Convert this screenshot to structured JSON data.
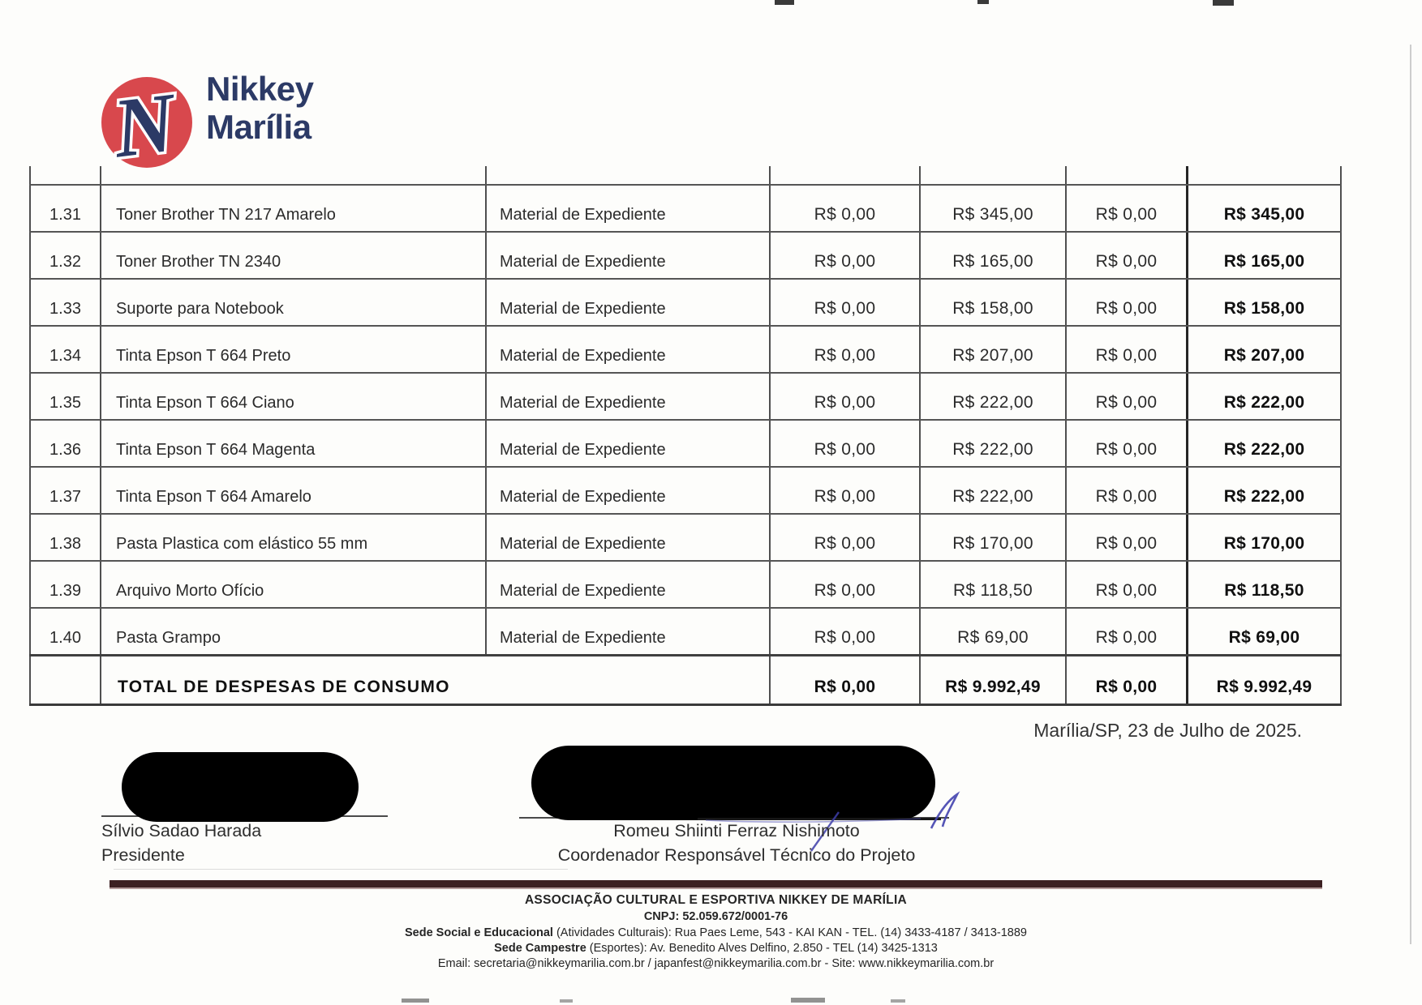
{
  "logo": {
    "line1": "Nikkey",
    "line2": "Marília"
  },
  "table": {
    "rows": [
      {
        "num": "1.31",
        "desc": "Toner Brother TN 217 Amarelo",
        "category": "Material de Expediente",
        "v1": "R$ 0,00",
        "v2": "R$ 345,00",
        "v3": "R$ 0,00",
        "total": "R$ 345,00"
      },
      {
        "num": "1.32",
        "desc": "Toner Brother TN 2340",
        "category": "Material de Expediente",
        "v1": "R$ 0,00",
        "v2": "R$ 165,00",
        "v3": "R$ 0,00",
        "total": "R$ 165,00"
      },
      {
        "num": "1.33",
        "desc": "Suporte para Notebook",
        "category": "Material de Expediente",
        "v1": "R$ 0,00",
        "v2": "R$ 158,00",
        "v3": "R$ 0,00",
        "total": "R$ 158,00"
      },
      {
        "num": "1.34",
        "desc": "Tinta Epson T 664 Preto",
        "category": "Material de Expediente",
        "v1": "R$ 0,00",
        "v2": "R$ 207,00",
        "v3": "R$ 0,00",
        "total": "R$ 207,00"
      },
      {
        "num": "1.35",
        "desc": "Tinta Epson T 664 Ciano",
        "category": "Material de Expediente",
        "v1": "R$ 0,00",
        "v2": "R$ 222,00",
        "v3": "R$ 0,00",
        "total": "R$ 222,00"
      },
      {
        "num": "1.36",
        "desc": "Tinta Epson T 664 Magenta",
        "category": "Material de Expediente",
        "v1": "R$ 0,00",
        "v2": "R$ 222,00",
        "v3": "R$ 0,00",
        "total": "R$ 222,00"
      },
      {
        "num": "1.37",
        "desc": "Tinta Epson T 664 Amarelo",
        "category": "Material de Expediente",
        "v1": "R$ 0,00",
        "v2": "R$ 222,00",
        "v3": "R$ 0,00",
        "total": "R$ 222,00"
      },
      {
        "num": "1.38",
        "desc": "Pasta Plastica com elástico 55 mm",
        "category": "Material de Expediente",
        "v1": "R$ 0,00",
        "v2": "R$ 170,00",
        "v3": "R$ 0,00",
        "total": "R$ 170,00"
      },
      {
        "num": "1.39",
        "desc": "Arquivo Morto Ofício",
        "category": "Material de Expediente",
        "v1": "R$ 0,00",
        "v2": "R$ 118,50",
        "v3": "R$ 0,00",
        "total": "R$ 118,50"
      },
      {
        "num": "1.40",
        "desc": "Pasta Grampo",
        "category": "Material de Expediente",
        "v1": "R$ 0,00",
        "v2": "R$ 69,00",
        "v3": "R$ 0,00",
        "total": "R$ 69,00"
      }
    ],
    "total_row": {
      "label": "TOTAL DE DESPESAS DE CONSUMO",
      "v1": "R$ 0,00",
      "v2": "R$ 9.992,49",
      "v3": "R$ 0,00",
      "total": "R$ 9.992,49"
    }
  },
  "date_line": "Marília/SP, 23 de Julho de 2025.",
  "signatures": {
    "left": {
      "name": "Sílvio Sadao Harada",
      "role": "Presidente"
    },
    "right": {
      "name": "Romeu Shiinti Ferraz Nishimoto",
      "role": "Coordenador Responsável Técnico do Projeto"
    }
  },
  "footer": {
    "org": "ASSOCIAÇÃO CULTURAL E ESPORTIVA NIKKEY DE MARÍLIA",
    "cnpj": "CNPJ: 52.059.672/0001-76",
    "line3_bold": "Sede Social e Educacional",
    "line3_rest": " (Atividades Culturais): Rua Paes Leme, 543 - KAI KAN - TEL. (14) 3433-4187 / 3413-1889",
    "line4_bold": "Sede Campestre",
    "line4_rest": " (Esportes): Av. Benedito Alves Delfino, 2.850 - TEL (14) 3425-1313",
    "line5": "Email:  secretaria@nikkeymarilia.com.br   /   japanfest@nikkeymarilia.com.br    -   Site:  www.nikkeymarilia.com.br"
  },
  "colors": {
    "logo_red": "#d8484d",
    "logo_navy": "#2c3a66",
    "footer_bar": "#3c2022"
  }
}
